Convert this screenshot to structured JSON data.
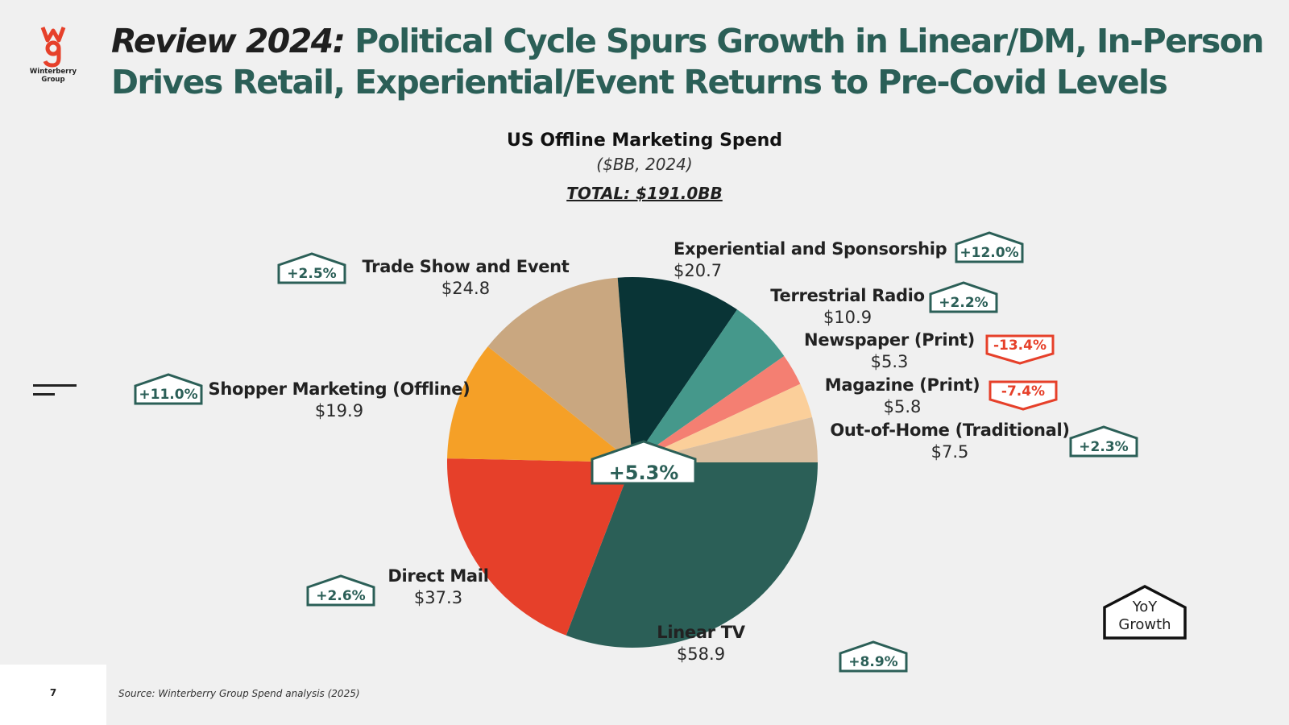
{
  "brand": {
    "logo_mark": "wg",
    "logo_name": "Winterberry Group",
    "accent": "#e6402a",
    "primary": "#2b5f57"
  },
  "header": {
    "title_lead": "Review 2024:",
    "title_rest": " Political Cycle Spurs Growth in Linear/DM, In-Person Drives Retail, Experiential/Event Returns to Pre-Covid Levels"
  },
  "chart_data": {
    "type": "pie",
    "title": "US Offline Marketing Spend",
    "subtitle": "($BB, 2024)",
    "total_label": "TOTAL: $191.0BB",
    "total": 191.0,
    "center_badge": "+5.3%",
    "legend_key": "YoY Growth",
    "slices": [
      {
        "name": "Linear TV",
        "value": 58.9,
        "value_label": "$58.9",
        "growth": "+8.9%",
        "direction": "up",
        "color": "#2b5f57"
      },
      {
        "name": "Direct Mail",
        "value": 37.3,
        "value_label": "$37.3",
        "growth": "+2.6%",
        "direction": "up",
        "color": "#e6402a"
      },
      {
        "name": "Shopper Marketing (Offline)",
        "value": 19.9,
        "value_label": "$19.9",
        "growth": "+11.0%",
        "direction": "up",
        "color": "#f5a027"
      },
      {
        "name": "Trade Show and Event",
        "value": 24.8,
        "value_label": "$24.8",
        "growth": "+2.5%",
        "direction": "up",
        "color": "#c9a780"
      },
      {
        "name": "Experiential and Sponsorship",
        "value": 20.7,
        "value_label": "$20.7",
        "growth": "+12.0%",
        "direction": "up",
        "color": "#093436"
      },
      {
        "name": "Terrestrial Radio",
        "value": 10.9,
        "value_label": "$10.9",
        "growth": "+2.2%",
        "direction": "up",
        "color": "#45988b"
      },
      {
        "name": "Newspaper (Print)",
        "value": 5.3,
        "value_label": "$5.3",
        "growth": "-13.4%",
        "direction": "down",
        "color": "#f47f72"
      },
      {
        "name": "Magazine (Print)",
        "value": 5.8,
        "value_label": "$5.8",
        "growth": "-7.4%",
        "direction": "down",
        "color": "#fbcf9a"
      },
      {
        "name": "Out-of-Home (Traditional)",
        "value": 7.5,
        "value_label": "$7.5",
        "growth": "+2.3%",
        "direction": "up",
        "color": "#d8bd9f"
      }
    ],
    "growth_colors": {
      "up": "#2b5f57",
      "down": "#e6402a"
    }
  },
  "footer": {
    "page_number": "7",
    "source": "Source: Winterberry Group Spend analysis (2025)"
  }
}
